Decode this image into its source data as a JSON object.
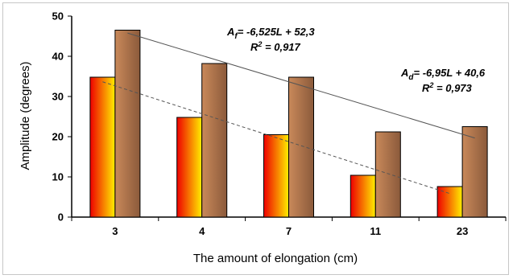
{
  "chart_data": {
    "type": "bar",
    "categories": [
      "3",
      "4",
      "7",
      "11",
      "23"
    ],
    "series": [
      {
        "values": [
          34.8,
          24.8,
          20.5,
          10.4,
          7.6
        ],
        "color": "#ff2200",
        "gradient": [
          "#ee0000",
          "#ffee00"
        ]
      },
      {
        "values": [
          46.5,
          38.2,
          34.8,
          21.2,
          22.5
        ],
        "color": "#a9683f",
        "gradient": [
          "#c9895a",
          "#8b5a3b"
        ]
      }
    ],
    "trendlines": [
      {
        "style": "solid",
        "slope": -6.525,
        "intercept": 52.3,
        "series_index": 1
      },
      {
        "style": "dashed",
        "slope": -6.95,
        "intercept": 40.6,
        "series_index": 0
      }
    ],
    "annotations": {
      "upper": {
        "prefix": "A",
        "sub": "f",
        "formula": "= -6,525L + 52,3",
        "r2_label": "R",
        "r2_sup": "2",
        "r2_value": " = 0,917"
      },
      "lower": {
        "prefix": "A",
        "sub": "d",
        "formula": "= -6,95L + 40,6",
        "r2_label": "R",
        "r2_sup": "2",
        "r2_value": " = 0,973"
      }
    },
    "xlabel": "The amount of elongation (cm)",
    "ylabel": "Amplitude (degrees)",
    "ylim": [
      0,
      50
    ],
    "yticks": [
      0,
      10,
      20,
      30,
      40,
      50
    ],
    "grid": false,
    "legend": "none"
  }
}
